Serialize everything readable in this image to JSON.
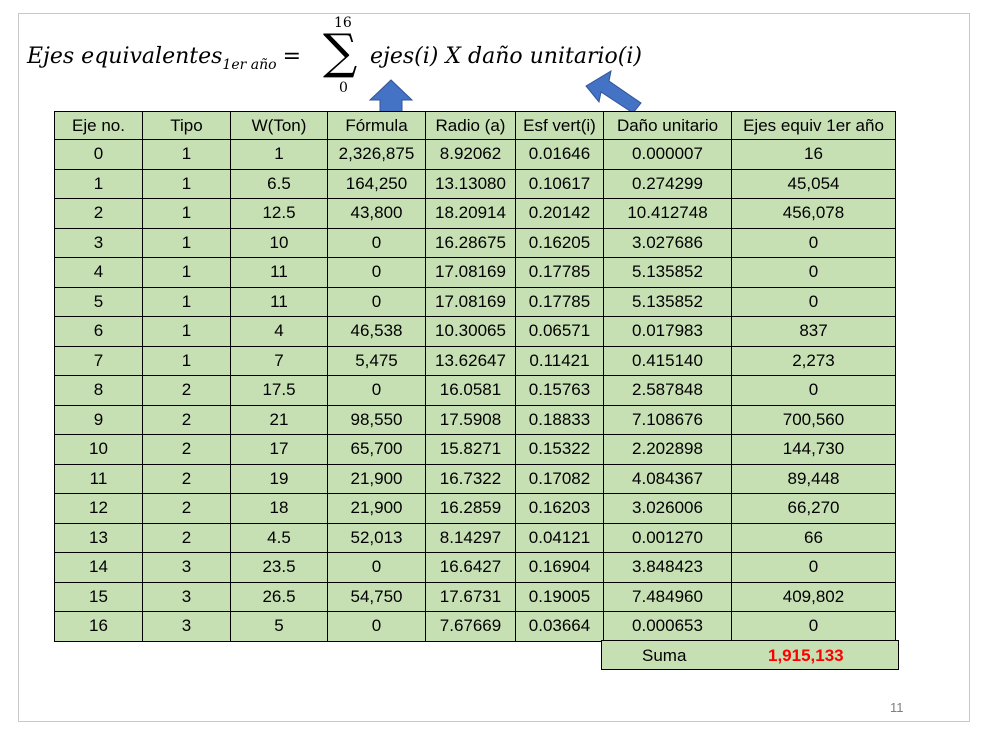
{
  "formula": {
    "lhs_main": "Ejes equivalentes",
    "lhs_sub": "1er año",
    "equals": "=",
    "sigma": "∑",
    "upper": "16",
    "lower": "0",
    "rhs": "ejes(i) X daño unitario(i)"
  },
  "table": {
    "headers": [
      "Eje no.",
      "Tipo",
      "W(Ton)",
      "Fórmula",
      "Radio (a)",
      "Esf vert(i)",
      "Daño unitario",
      "Ejes equiv 1er año"
    ],
    "rows": [
      [
        "0",
        "1",
        "1",
        "2,326,875",
        "8.92062",
        "0.01646",
        "0.000007",
        "16"
      ],
      [
        "1",
        "1",
        "6.5",
        "164,250",
        "13.13080",
        "0.10617",
        "0.274299",
        "45,054"
      ],
      [
        "2",
        "1",
        "12.5",
        "43,800",
        "18.20914",
        "0.20142",
        "10.412748",
        "456,078"
      ],
      [
        "3",
        "1",
        "10",
        "0",
        "16.28675",
        "0.16205",
        "3.027686",
        "0"
      ],
      [
        "4",
        "1",
        "11",
        "0",
        "17.08169",
        "0.17785",
        "5.135852",
        "0"
      ],
      [
        "5",
        "1",
        "11",
        "0",
        "17.08169",
        "0.17785",
        "5.135852",
        "0"
      ],
      [
        "6",
        "1",
        "4",
        "46,538",
        "10.30065",
        "0.06571",
        "0.017983",
        "837"
      ],
      [
        "7",
        "1",
        "7",
        "5,475",
        "13.62647",
        "0.11421",
        "0.415140",
        "2,273"
      ],
      [
        "8",
        "2",
        "17.5",
        "0",
        "16.0581",
        "0.15763",
        "2.587848",
        "0"
      ],
      [
        "9",
        "2",
        "21",
        "98,550",
        "17.5908",
        "0.18833",
        "7.108676",
        "700,560"
      ],
      [
        "10",
        "2",
        "17",
        "65,700",
        "15.8271",
        "0.15322",
        "2.202898",
        "144,730"
      ],
      [
        "11",
        "2",
        "19",
        "21,900",
        "16.7322",
        "0.17082",
        "4.084367",
        "89,448"
      ],
      [
        "12",
        "2",
        "18",
        "21,900",
        "16.2859",
        "0.16203",
        "3.026006",
        "66,270"
      ],
      [
        "13",
        "2",
        "4.5",
        "52,013",
        "8.14297",
        "0.04121",
        "0.001270",
        "66"
      ],
      [
        "14",
        "3",
        "23.5",
        "0",
        "16.6427",
        "0.16904",
        "3.848423",
        "0"
      ],
      [
        "15",
        "3",
        "26.5",
        "54,750",
        "17.6731",
        "0.19005",
        "7.484960",
        "409,802"
      ],
      [
        "16",
        "3",
        "5",
        "0",
        "7.67669",
        "0.03664",
        "0.000653",
        "0"
      ]
    ]
  },
  "suma": {
    "label": "Suma",
    "value": "1,915,133"
  },
  "page_number": "11",
  "colors": {
    "cell_fill": "#c6e0b4",
    "arrow_fill": "#4472c4",
    "total_text": "#ff0000"
  }
}
